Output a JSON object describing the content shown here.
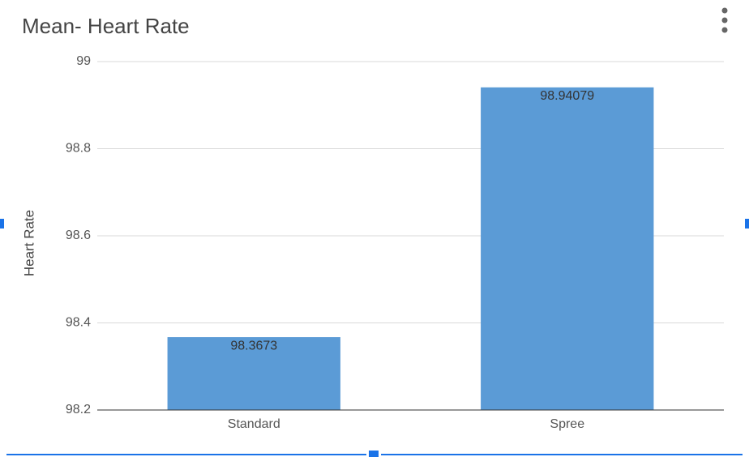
{
  "chart_data": {
    "type": "bar",
    "title": "Mean- Heart Rate",
    "y_label": "Heart Rate",
    "categories": [
      "Standard",
      "Spree"
    ],
    "values": [
      98.3673,
      98.94079
    ],
    "color": "#5b9bd6",
    "ylim": [
      98.2,
      99
    ],
    "yticks": [
      98.2,
      98.4,
      98.6,
      98.8,
      99
    ],
    "grid": true
  }
}
